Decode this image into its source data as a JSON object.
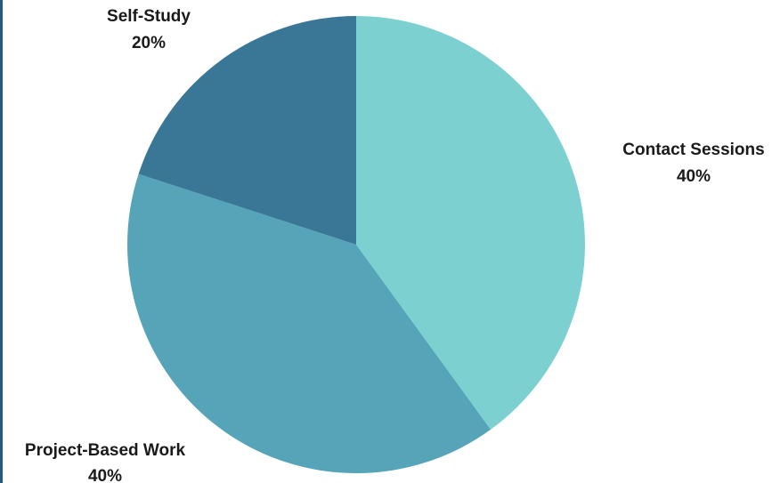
{
  "chart_data": {
    "type": "pie",
    "title": "",
    "slices": [
      {
        "label": "Contact Sessions",
        "value": 40,
        "display": "40%",
        "color": "#7dd0d0"
      },
      {
        "label": "Project-Based Work",
        "value": 40,
        "display": "40%",
        "color": "#55a4b8"
      },
      {
        "label": "Self-Study",
        "value": 20,
        "display": "20%",
        "color": "#3a7796"
      }
    ],
    "start_angle_deg": 0,
    "direction": "clockwise",
    "legend": "none",
    "label_placement": "outside"
  },
  "colors": {
    "left_border": "#1f5c7e"
  }
}
